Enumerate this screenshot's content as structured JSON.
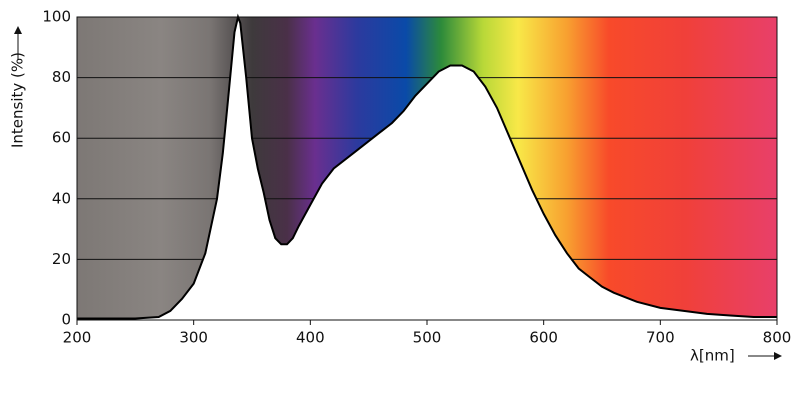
{
  "chart_data": {
    "type": "line",
    "x_label": "λ[nm]",
    "y_label": "Intensity (%)",
    "x": [
      200,
      250,
      270,
      280,
      290,
      300,
      310,
      320,
      325,
      330,
      335,
      338,
      340,
      345,
      350,
      355,
      360,
      365,
      370,
      375,
      380,
      385,
      390,
      400,
      410,
      420,
      440,
      460,
      470,
      480,
      490,
      500,
      510,
      520,
      530,
      540,
      550,
      560,
      570,
      580,
      590,
      600,
      610,
      620,
      630,
      640,
      650,
      660,
      680,
      700,
      720,
      740,
      760,
      780,
      800
    ],
    "series": [
      {
        "name": "Intensity",
        "color": "#000000",
        "values": [
          0.5,
          0.5,
          1,
          3,
          7,
          12,
          22,
          40,
          55,
          75,
          95,
          100,
          98,
          80,
          60,
          50,
          42,
          33,
          27,
          25,
          25,
          27,
          31,
          38,
          45,
          50,
          56,
          62,
          65,
          69,
          74,
          78,
          82,
          84,
          84,
          82,
          77,
          70,
          61,
          52,
          43,
          35,
          28,
          22,
          17,
          14,
          11,
          9,
          6,
          4,
          3,
          2,
          1.5,
          1,
          1
        ]
      }
    ],
    "xlim": [
      200,
      800
    ],
    "xticks": [
      200,
      300,
      400,
      500,
      600,
      700,
      800
    ],
    "ylim": [
      0,
      100
    ],
    "yticks": [
      0,
      20,
      40,
      60,
      80,
      100
    ],
    "grid": true
  }
}
